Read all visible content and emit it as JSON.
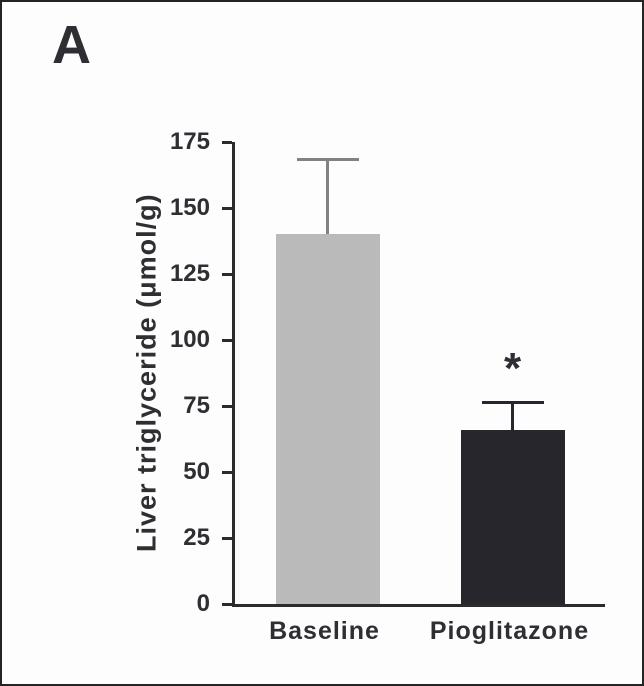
{
  "figure": {
    "panel_label": "A"
  },
  "chart_data": {
    "type": "bar",
    "title": "",
    "xlabel": "",
    "ylabel": "Liver triglyceride (μmol/g)",
    "categories": [
      "Baseline",
      "Pioglitazone"
    ],
    "values": [
      140,
      66
    ],
    "errors": [
      29,
      11
    ],
    "annotations": [
      "",
      "*"
    ],
    "ylim": [
      0,
      175
    ],
    "yticks": [
      0,
      25,
      50,
      75,
      100,
      125,
      150,
      175
    ],
    "bar_colors": [
      "#bababa",
      "#26262c"
    ],
    "error_colors": [
      "#828282",
      "#26262c"
    ],
    "axis_color": "#2b2b2b",
    "grid": false,
    "legend": "none"
  }
}
